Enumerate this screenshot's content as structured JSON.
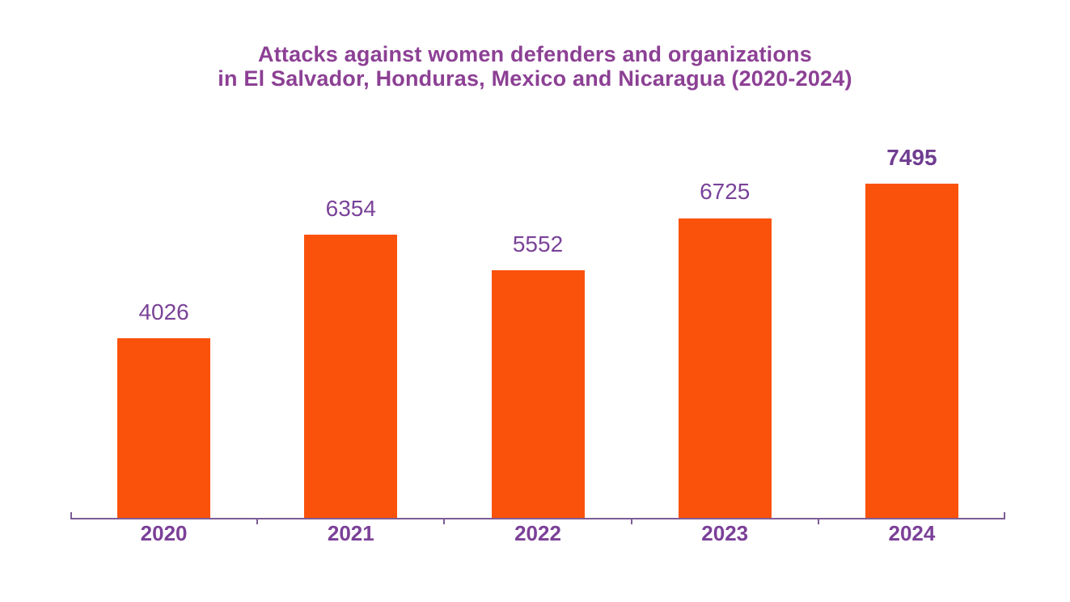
{
  "title": {
    "line1": "Attacks against women defenders and organizations",
    "line2": "in El Salvador, Honduras, Mexico and Nicaragua (2020-2024)"
  },
  "chart_data": {
    "type": "bar",
    "title": "Attacks against women defenders and organizations in El Salvador, Honduras, Mexico and Nicaragua (2020-2024)",
    "categories": [
      "2020",
      "2021",
      "2022",
      "2023",
      "2024"
    ],
    "values": [
      4026,
      6354,
      5552,
      6725,
      7495
    ],
    "xlabel": "",
    "ylabel": "",
    "ylim": [
      0,
      8000
    ],
    "grid": false,
    "legend": false,
    "data_labels": true,
    "emphasized_category": "2024",
    "colors": {
      "bar": "#FA520A",
      "title": "#8C4094",
      "value_label": "#7A4399",
      "value_label_emphasized": "#6F3D91",
      "x_axis_label": "#7B4098",
      "axis_line": "#7E5E96",
      "background": "#FFFFFF"
    }
  }
}
